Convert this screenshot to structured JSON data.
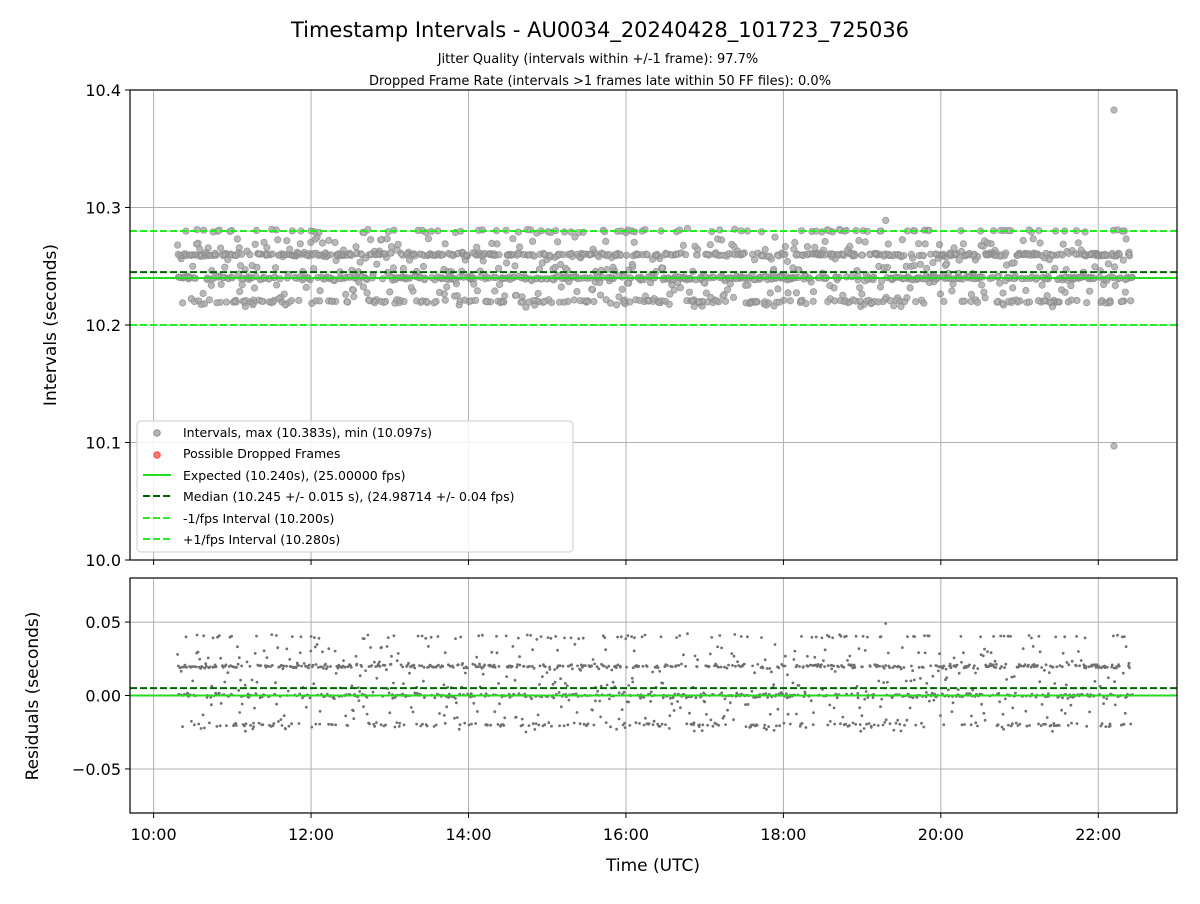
{
  "chart_data": [
    {
      "type": "scatter",
      "title": "Timestamp Intervals - AU0034_20240428_101723_725036",
      "subtitle_lines": [
        "Jitter Quality (intervals within +/-1 frame): 97.7%",
        "Dropped Frame Rate (intervals >1 frames late within 50 FF files): 0.0%"
      ],
      "xlabel": "",
      "ylabel": "Intervals (seconds)",
      "xlim": [
        "09:42",
        "23:00"
      ],
      "ylim": [
        10.0,
        10.4
      ],
      "x_ticks": [
        "10:00",
        "12:00",
        "14:00",
        "16:00",
        "18:00",
        "20:00",
        "22:00"
      ],
      "y_ticks": [
        "10.0",
        "10.1",
        "10.2",
        "10.3",
        "10.4"
      ],
      "grid": true,
      "legend_position": "lower-left",
      "x_range_observed": [
        "10:18",
        "22:26"
      ],
      "point_bands": [
        10.22,
        10.24,
        10.26,
        10.28
      ],
      "outliers": [
        {
          "x": "22:12",
          "y": 10.383
        },
        {
          "x": "22:12",
          "y": 10.097
        },
        {
          "x": "19:18",
          "y": 10.289
        }
      ],
      "series": [
        {
          "name": "Intervals, max (10.383s), min (10.097s)",
          "color": "#808080",
          "marker": "circle"
        },
        {
          "name": "Possible Dropped Frames",
          "color": "#ff5050",
          "marker": "circle"
        },
        {
          "name": "Expected (10.240s), (25.00000 fps)",
          "color": "#22dd22",
          "line": "solid",
          "y": 10.24
        },
        {
          "name": "Median (10.245 +/- 0.015 s), (24.98714 +/- 0.04 fps)",
          "color": "#006400",
          "line": "dashed",
          "y": 10.245
        },
        {
          "name": "-1/fps Interval (10.200s)",
          "color": "#22ee22",
          "line": "dashed",
          "y": 10.2
        },
        {
          "name": "+1/fps Interval (10.280s)",
          "color": "#22ee22",
          "line": "dashed",
          "y": 10.28
        }
      ]
    },
    {
      "type": "scatter",
      "xlabel": "Time (UTC)",
      "ylabel": "Residuals (seconds)",
      "xlim": [
        "09:42",
        "23:00"
      ],
      "ylim": [
        -0.08,
        0.08
      ],
      "x_ticks": [
        "10:00",
        "12:00",
        "14:00",
        "16:00",
        "18:00",
        "20:00",
        "22:00"
      ],
      "y_ticks": [
        "0.05",
        "0.00",
        "−0.05"
      ],
      "grid": true,
      "point_bands": [
        -0.02,
        0.0,
        0.02,
        0.04
      ],
      "series": [
        {
          "name": "Residuals",
          "color": "#707070",
          "marker": "circle"
        },
        {
          "name": "Expected",
          "color": "#22dd22",
          "line": "solid",
          "y": 0.0
        },
        {
          "name": "Median",
          "color": "#006400",
          "line": "dashed",
          "y": 0.005
        }
      ]
    }
  ]
}
